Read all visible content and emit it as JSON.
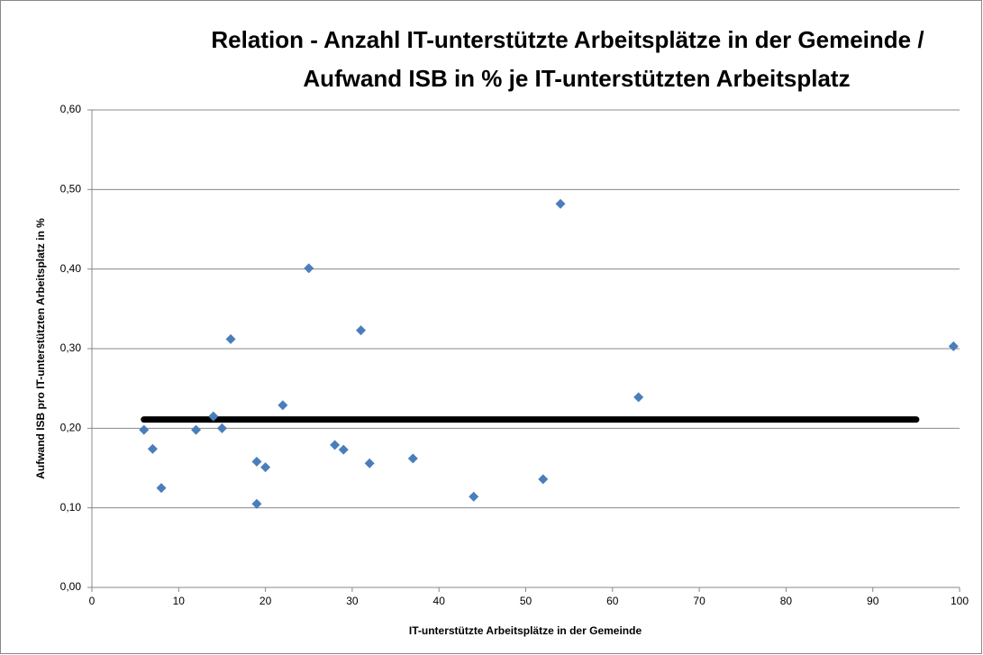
{
  "chart_data": {
    "type": "scatter",
    "title": [
      "Relation - Anzahl IT-unterstützte Arbeitsplätze in der Gemeinde /",
      "Aufwand ISB in % je IT-unterstützten Arbeitsplatz"
    ],
    "x_label": "IT-unterstützte Arbeitsplätze in der Gemeinde",
    "y_label": "Aufwand ISB pro IT-unterstützten Arbeitsplatz in %",
    "points": {
      "color": "#4a7ebb",
      "x": [
        6,
        7,
        8,
        12,
        14,
        15,
        16,
        19,
        19,
        20,
        22,
        25,
        28,
        29,
        31,
        32,
        37,
        44,
        52,
        54,
        63,
        99.3
      ],
      "y": [
        0.198,
        0.174,
        0.125,
        0.198,
        0.215,
        0.2,
        0.312,
        0.158,
        0.105,
        0.151,
        0.229,
        0.401,
        0.179,
        0.173,
        0.323,
        0.156,
        0.162,
        0.114,
        0.136,
        0.482,
        0.239,
        0.303
      ]
    },
    "mean_line": {
      "color": "#000000",
      "x": [
        6,
        95
      ],
      "y": [
        0.211,
        0.211
      ]
    },
    "xlim": [
      0,
      100
    ],
    "xticks": [
      0,
      10,
      20,
      30,
      40,
      50,
      60,
      70,
      80,
      90,
      100
    ],
    "ylim": [
      0,
      0.6
    ],
    "yticks": [
      {
        "value": 0,
        "label": "0,00"
      },
      {
        "value": 0.1,
        "label": "0,10"
      },
      {
        "value": 0.2,
        "label": "0,20"
      },
      {
        "value": 0.3,
        "label": "0,30"
      },
      {
        "value": 0.4,
        "label": "0,40"
      },
      {
        "value": 0.5,
        "label": "0,50"
      },
      {
        "value": 0.6,
        "label": "0,60"
      }
    ],
    "grid": true
  }
}
